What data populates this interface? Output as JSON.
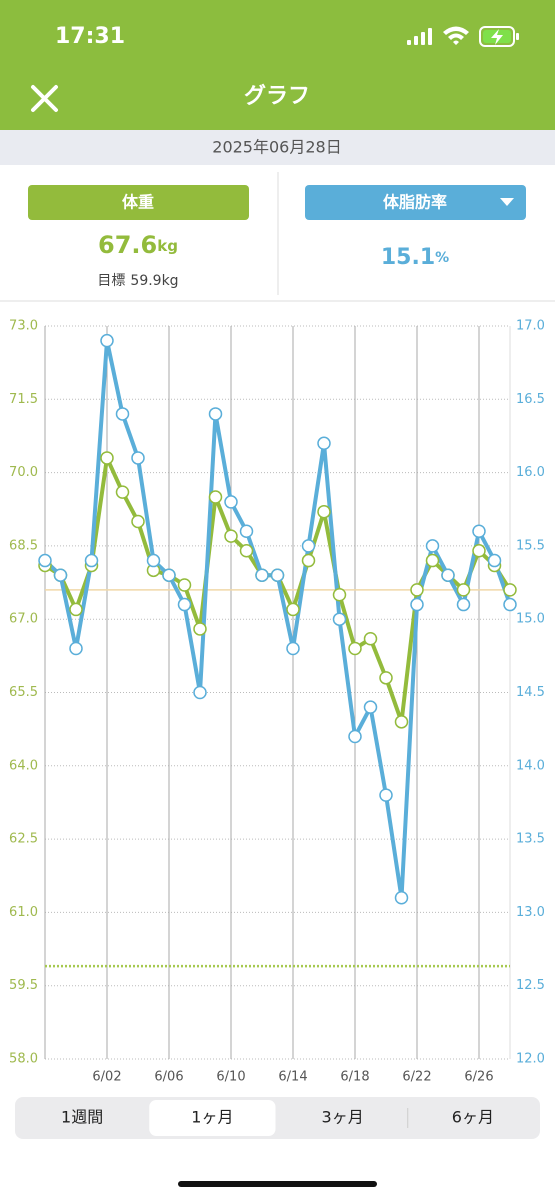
{
  "status_bar": {
    "time": "17:31"
  },
  "header": {
    "title": "グラフ"
  },
  "date": "2025年06月28日",
  "weight": {
    "button": "体重",
    "value": 67.6,
    "unit": "kg",
    "goal": {
      "label": "目標",
      "value": 59.9,
      "unit": "kg"
    }
  },
  "body_fat": {
    "button": "体脂肪率",
    "value": 15.1,
    "unit": "%"
  },
  "chart_data": {
    "type": "line",
    "categories": [
      null,
      null,
      null,
      null,
      "6/02",
      null,
      null,
      null,
      "6/06",
      null,
      null,
      null,
      "6/10",
      null,
      null,
      null,
      "6/14",
      null,
      null,
      null,
      "6/18",
      null,
      null,
      null,
      "6/22",
      null,
      null,
      null,
      "6/26",
      null,
      null
    ],
    "series": [
      {
        "color": "#93bb3c",
        "axis": "y",
        "values": [
          68.1,
          67.9,
          67.2,
          68.1,
          70.3,
          69.6,
          69.0,
          68.0,
          67.9,
          67.7,
          66.8,
          69.5,
          68.7,
          68.4,
          67.9,
          67.9,
          67.2,
          68.2,
          69.2,
          67.5,
          66.4,
          66.6,
          65.8,
          64.9,
          67.6,
          68.2,
          67.9,
          67.6,
          68.4,
          68.1,
          67.6
        ]
      },
      {
        "color": "#5aaed9",
        "axis": "y2",
        "values": [
          15.4,
          15.3,
          14.8,
          15.4,
          16.9,
          16.4,
          16.1,
          15.4,
          15.3,
          15.1,
          14.5,
          16.4,
          15.8,
          15.6,
          15.3,
          15.3,
          14.8,
          15.5,
          16.2,
          15.0,
          14.2,
          14.4,
          13.8,
          13.1,
          15.1,
          15.5,
          15.3,
          15.1,
          15.6,
          15.4,
          15.1
        ]
      }
    ],
    "ylim": [
      58,
      73
    ],
    "yticks": [
      {
        "value": 58,
        "label": "58.0"
      },
      59.5,
      {
        "value": 61,
        "label": "61.0"
      },
      62.5,
      {
        "value": 64,
        "label": "64.0"
      },
      65.5,
      {
        "value": 67,
        "label": "67.0"
      },
      68.5,
      {
        "value": 70,
        "label": "70.0"
      },
      71.5,
      {
        "value": 73,
        "label": "73.0"
      }
    ],
    "y2lim": [
      12,
      17
    ],
    "y2ticks": [
      {
        "value": 12,
        "label": "12.0"
      },
      12.5,
      {
        "value": 13,
        "label": "13.0"
      },
      13.5,
      {
        "value": 14,
        "label": "14.0"
      },
      14.5,
      {
        "value": 15,
        "label": "15.0"
      },
      15.5,
      {
        "value": 16,
        "label": "16.0"
      },
      16.5,
      {
        "value": 17,
        "label": "17.0"
      }
    ],
    "grid": true
  },
  "segments": {
    "options": [
      "1週間",
      "1ヶ月",
      "3ヶ月",
      "6ヶ月"
    ],
    "selected": 1
  }
}
